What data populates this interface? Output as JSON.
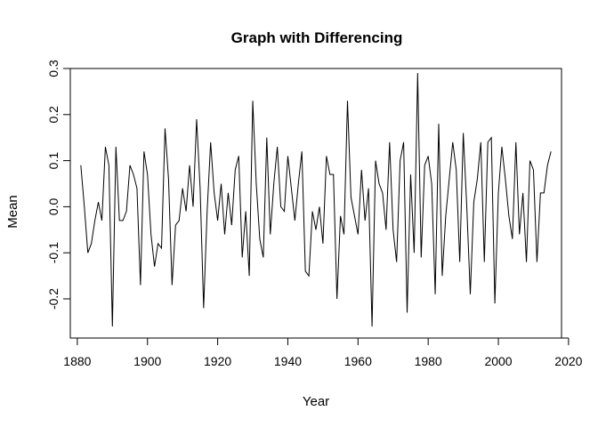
{
  "chart_data": {
    "type": "line",
    "title": "Graph with Differencing",
    "xlabel": "Year",
    "ylabel": "Mean",
    "xlim": [
      1878,
      2018
    ],
    "ylim": [
      -0.285,
      0.3
    ],
    "xticks": [
      1880,
      1900,
      1920,
      1940,
      1960,
      1980,
      2000,
      2020
    ],
    "xtick_labels": [
      "1880",
      "1900",
      "1920",
      "1940",
      "1960",
      "1980",
      "2000",
      "2020"
    ],
    "yticks": [
      -0.2,
      -0.1,
      0.0,
      0.1,
      0.2,
      0.3
    ],
    "ytick_labels": [
      "-0.2",
      "-0.1",
      "0.0",
      "0.1",
      "0.2",
      "0.3"
    ],
    "grid": false,
    "line_color": "#000000",
    "series": [
      {
        "x": [
          1881,
          1882,
          1883,
          1884,
          1885,
          1886,
          1887,
          1888,
          1889,
          1890,
          1891,
          1892,
          1893,
          1894,
          1895,
          1896,
          1897,
          1898,
          1899,
          1900,
          1901,
          1902,
          1903,
          1904,
          1905,
          1906,
          1907,
          1908,
          1909,
          1910,
          1911,
          1912,
          1913,
          1914,
          1915,
          1916,
          1917,
          1918,
          1919,
          1920,
          1921,
          1922,
          1923,
          1924,
          1925,
          1926,
          1927,
          1928,
          1929,
          1930,
          1931,
          1932,
          1933,
          1934,
          1935,
          1936,
          1937,
          1938,
          1939,
          1940,
          1941,
          1942,
          1943,
          1944,
          1945,
          1946,
          1947,
          1948,
          1949,
          1950,
          1951,
          1952,
          1953,
          1954,
          1955,
          1956,
          1957,
          1958,
          1959,
          1960,
          1961,
          1962,
          1963,
          1964,
          1965,
          1966,
          1967,
          1968,
          1969,
          1970,
          1971,
          1972,
          1973,
          1974,
          1975,
          1976,
          1977,
          1978,
          1979,
          1980,
          1981,
          1982,
          1983,
          1984,
          1985,
          1986,
          1987,
          1988,
          1989,
          1990,
          1991,
          1992,
          1993,
          1994,
          1995,
          1996,
          1997,
          1998,
          1999,
          2000,
          2001,
          2002,
          2003,
          2004,
          2005,
          2006,
          2007,
          2008,
          2009,
          2010,
          2011,
          2012,
          2013,
          2014,
          2015
        ],
        "y": [
          0.09,
          0.0,
          -0.1,
          -0.08,
          -0.03,
          0.01,
          -0.03,
          0.13,
          0.09,
          -0.26,
          0.13,
          -0.03,
          -0.03,
          -0.01,
          0.09,
          0.07,
          0.04,
          -0.17,
          0.12,
          0.07,
          -0.06,
          -0.13,
          -0.08,
          -0.09,
          0.17,
          0.06,
          -0.17,
          -0.04,
          -0.03,
          0.04,
          -0.01,
          0.09,
          0.0,
          0.19,
          0.04,
          -0.22,
          -0.01,
          0.14,
          0.03,
          -0.03,
          0.05,
          -0.06,
          0.03,
          -0.04,
          0.08,
          0.11,
          -0.11,
          -0.01,
          -0.15,
          0.23,
          0.05,
          -0.07,
          -0.11,
          0.15,
          -0.06,
          0.05,
          0.13,
          0.0,
          -0.01,
          0.11,
          0.04,
          -0.03,
          0.05,
          0.12,
          -0.14,
          -0.15,
          -0.01,
          -0.05,
          0.0,
          -0.08,
          0.11,
          0.07,
          0.07,
          -0.2,
          -0.02,
          -0.06,
          0.23,
          0.02,
          -0.02,
          -0.06,
          0.08,
          -0.03,
          0.04,
          -0.26,
          0.1,
          0.05,
          0.03,
          -0.05,
          0.14,
          -0.05,
          -0.12,
          0.1,
          0.14,
          -0.23,
          0.07,
          -0.1,
          0.29,
          -0.11,
          0.09,
          0.11,
          0.05,
          -0.19,
          0.18,
          -0.15,
          -0.02,
          0.06,
          0.14,
          0.08,
          -0.12,
          0.16,
          0.0,
          -0.19,
          0.01,
          0.06,
          0.14,
          -0.12,
          0.14,
          0.15,
          -0.21,
          0.03,
          0.13,
          0.06,
          -0.02,
          -0.07,
          0.14,
          -0.06,
          0.03,
          -0.12,
          0.1,
          0.08,
          -0.12,
          0.03,
          0.03,
          0.09,
          0.12
        ]
      }
    ]
  }
}
